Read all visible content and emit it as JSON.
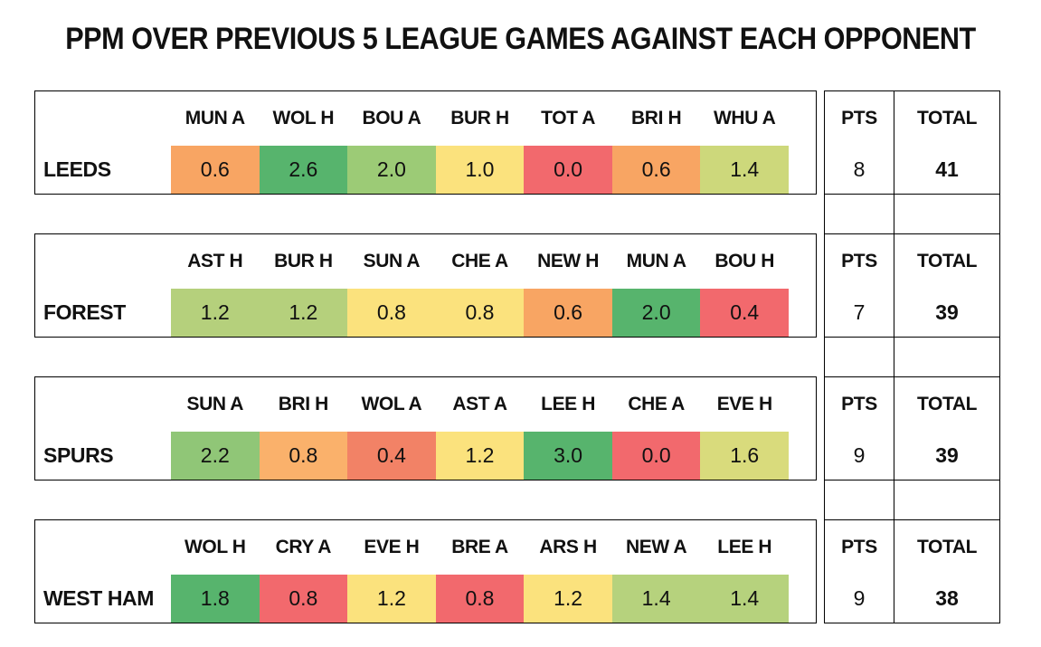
{
  "chart_data": {
    "type": "heatmap",
    "title": "PPM OVER PREVIOUS 5 LEAGUE GAMES AGAINST EACH OPPONENT",
    "pts_header": "PTS",
    "total_header": "TOTAL",
    "value_range": [
      0.0,
      3.0
    ],
    "color_scale": {
      "low": "#F2696D",
      "mid": "#FBE27D",
      "high": "#57B46D"
    },
    "teams": [
      {
        "name": "LEEDS",
        "pts": "8",
        "total": "41",
        "games": [
          {
            "opp": "MUN A",
            "ppm": "0.6",
            "color": "#F8A563"
          },
          {
            "opp": "WOL H",
            "ppm": "2.6",
            "color": "#57B46D"
          },
          {
            "opp": "BOU A",
            "ppm": "2.0",
            "color": "#9CCB76"
          },
          {
            "opp": "BUR H",
            "ppm": "1.0",
            "color": "#FBE27D"
          },
          {
            "opp": "TOT A",
            "ppm": "0.0",
            "color": "#F2696D"
          },
          {
            "opp": "BRI H",
            "ppm": "0.6",
            "color": "#F8A563"
          },
          {
            "opp": "WHU A",
            "ppm": "1.4",
            "color": "#CDD87B"
          }
        ]
      },
      {
        "name": "FOREST",
        "pts": "7",
        "total": "39",
        "games": [
          {
            "opp": "AST H",
            "ppm": "1.2",
            "color": "#B5D07C"
          },
          {
            "opp": "BUR H",
            "ppm": "1.2",
            "color": "#B5D07C"
          },
          {
            "opp": "SUN A",
            "ppm": "0.8",
            "color": "#FBE27D"
          },
          {
            "opp": "CHE A",
            "ppm": "0.8",
            "color": "#FBE27D"
          },
          {
            "opp": "NEW H",
            "ppm": "0.6",
            "color": "#F8A563"
          },
          {
            "opp": "MUN A",
            "ppm": "2.0",
            "color": "#57B46D"
          },
          {
            "opp": "BOU H",
            "ppm": "0.4",
            "color": "#F2696D"
          }
        ]
      },
      {
        "name": "SPURS",
        "pts": "9",
        "total": "39",
        "games": [
          {
            "opp": "SUN A",
            "ppm": "2.2",
            "color": "#90C677"
          },
          {
            "opp": "BRI H",
            "ppm": "0.8",
            "color": "#FAB16B"
          },
          {
            "opp": "WOL A",
            "ppm": "0.4",
            "color": "#F28266"
          },
          {
            "opp": "AST A",
            "ppm": "1.2",
            "color": "#FBE27D"
          },
          {
            "opp": "LEE H",
            "ppm": "3.0",
            "color": "#57B46D"
          },
          {
            "opp": "CHE A",
            "ppm": "0.0",
            "color": "#F2696D"
          },
          {
            "opp": "EVE H",
            "ppm": "1.6",
            "color": "#D9DB7C"
          }
        ]
      },
      {
        "name": "WEST HAM",
        "pts": "9",
        "total": "38",
        "games": [
          {
            "opp": "WOL H",
            "ppm": "1.8",
            "color": "#57B46D"
          },
          {
            "opp": "CRY A",
            "ppm": "0.8",
            "color": "#F2696D"
          },
          {
            "opp": "EVE H",
            "ppm": "1.2",
            "color": "#FBE27D"
          },
          {
            "opp": "BRE A",
            "ppm": "0.8",
            "color": "#F2696D"
          },
          {
            "opp": "ARS H",
            "ppm": "1.2",
            "color": "#FBE27D"
          },
          {
            "opp": "NEW A",
            "ppm": "1.4",
            "color": "#B6D27D"
          },
          {
            "opp": "LEE H",
            "ppm": "1.4",
            "color": "#B6D27D"
          }
        ]
      }
    ]
  }
}
